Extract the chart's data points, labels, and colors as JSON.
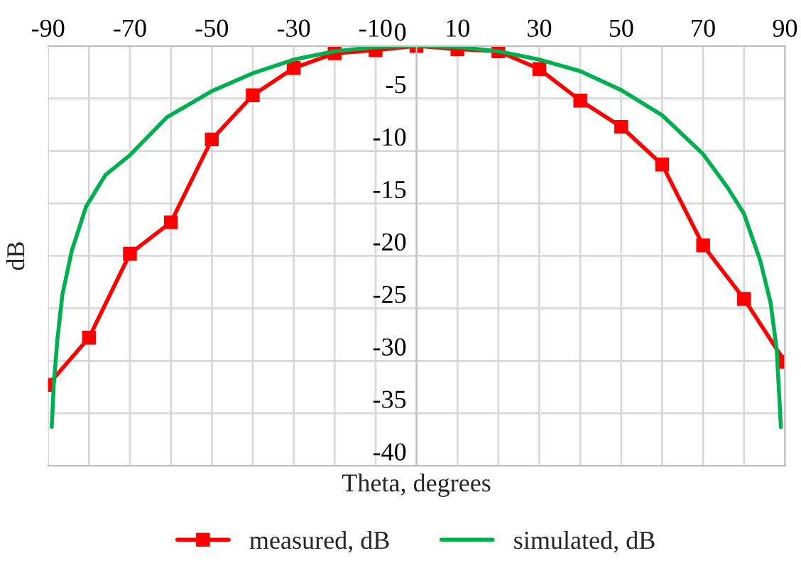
{
  "chart_data": {
    "type": "line",
    "xlabel": "Theta, degrees",
    "ylabel": "dB",
    "xlim": [
      -90,
      90
    ],
    "ylim": [
      -40,
      0
    ],
    "xticks": [
      -90,
      {
        "value": -80,
        "label": null
      },
      -70,
      {
        "value": -60,
        "label": null
      },
      -50,
      {
        "value": -40,
        "label": null
      },
      -30,
      {
        "value": -20,
        "label": null
      },
      -10,
      {
        "value": 0,
        "label": null
      },
      10,
      {
        "value": 20,
        "label": null
      },
      30,
      {
        "value": 40,
        "label": null
      },
      50,
      {
        "value": 60,
        "label": null
      },
      70,
      {
        "value": 80,
        "label": null
      },
      90
    ],
    "yticks": [
      -40,
      -35,
      -30,
      -25,
      -20,
      -15,
      -10,
      -5,
      0
    ],
    "grid": true,
    "legend": "bottom",
    "series": [
      {
        "name": "measured, dB",
        "color": "#ff0000",
        "marker": "square",
        "x": [
          -90,
          -80,
          -70,
          -60,
          -50,
          -40,
          -30,
          -20,
          -10,
          0,
          10,
          20,
          30,
          40,
          50,
          60,
          70,
          80,
          90
        ],
        "values": [
          -32.3,
          -27.8,
          -19.8,
          -16.8,
          -8.9,
          -4.7,
          -2.1,
          -0.7,
          -0.4,
          0,
          -0.3,
          -0.5,
          -2.2,
          -5.2,
          -7.7,
          -11.3,
          -19.0,
          -24.1,
          -30.1
        ]
      },
      {
        "name": "simulated, dB",
        "color": "#00b050",
        "marker": "none",
        "x": [
          -89.1,
          -88.6,
          -87.7,
          -86.5,
          -84.2,
          -80.7,
          -76,
          -70,
          -61,
          -50,
          -40,
          -30,
          -20,
          -10,
          0,
          10,
          20,
          30,
          40,
          50,
          60,
          70,
          76,
          80,
          84,
          86.5,
          88,
          89
        ],
        "values": [
          -36.3,
          -32.2,
          -27.9,
          -23.7,
          -19.5,
          -15.3,
          -12.3,
          -10.4,
          -6.8,
          -4.3,
          -2.6,
          -1.3,
          -0.5,
          -0.1,
          0,
          -0.1,
          -0.5,
          -1.3,
          -2.4,
          -4.2,
          -6.6,
          -10.3,
          -13.5,
          -16,
          -20.5,
          -24.5,
          -29,
          -36.3
        ]
      }
    ]
  }
}
